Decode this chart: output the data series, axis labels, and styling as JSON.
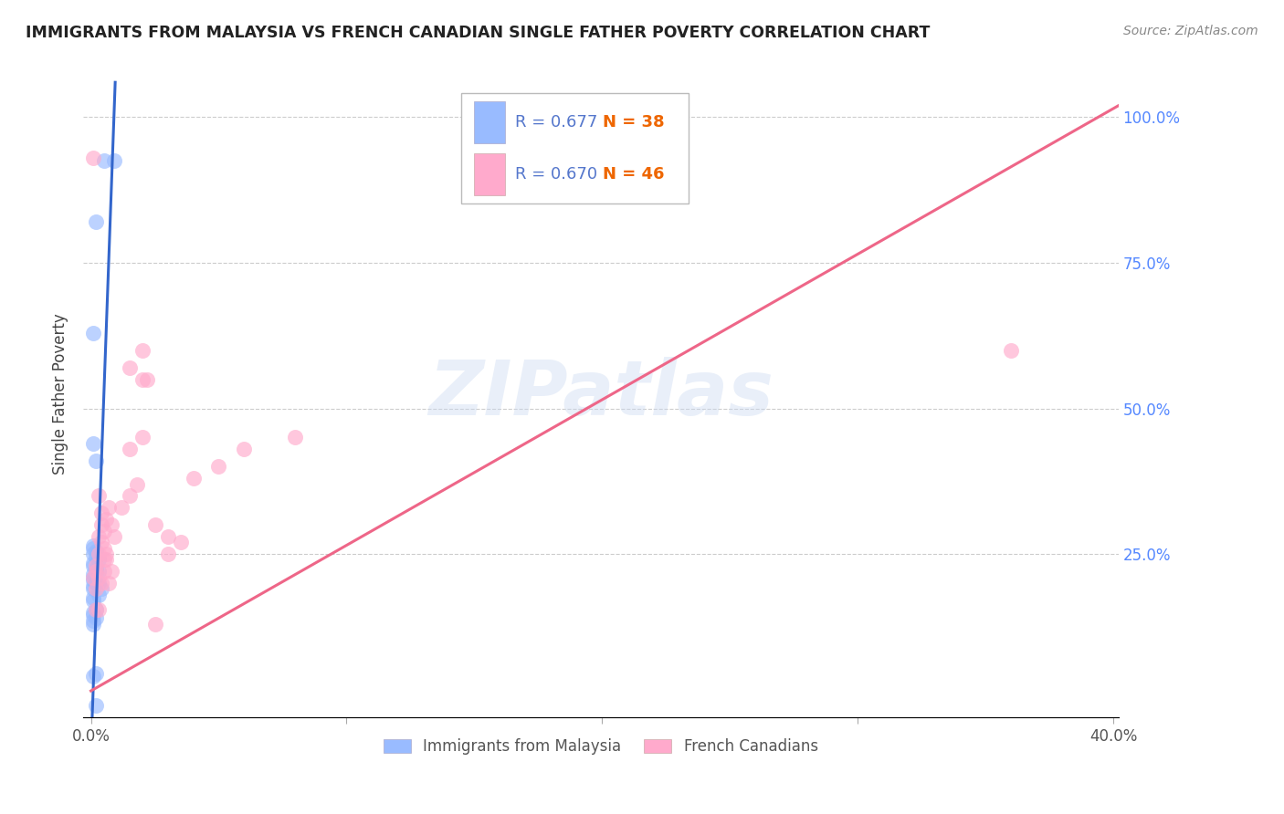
{
  "title": "IMMIGRANTS FROM MALAYSIA VS FRENCH CANADIAN SINGLE FATHER POVERTY CORRELATION CHART",
  "source": "Source: ZipAtlas.com",
  "ylabel": "Single Father Poverty",
  "watermark": "ZIPatlas",
  "legend": {
    "blue_R_label": "R = 0.677",
    "blue_N_label": "N = 38",
    "pink_R_label": "R = 0.670",
    "pink_N_label": "N = 46",
    "series1_label": "Immigrants from Malaysia",
    "series2_label": "French Canadians"
  },
  "blue_color": "#99bbff",
  "pink_color": "#ffaacc",
  "blue_line_color": "#3366cc",
  "pink_line_color": "#ee6688",
  "R_text_color": "#5577cc",
  "N_text_color": "#ee6600",
  "xlim": [
    -0.003,
    0.402
  ],
  "ylim": [
    -0.03,
    1.08
  ],
  "ytick_values": [
    0.25,
    0.5,
    0.75,
    1.0
  ],
  "ytick_labels": [
    "25.0%",
    "50.0%",
    "75.0%",
    "100.0%"
  ],
  "xtick_values": [
    0.0,
    0.1,
    0.2,
    0.3,
    0.4
  ],
  "xtick_labels": [
    "0.0%",
    "",
    "",
    "",
    "40.0%"
  ],
  "blue_points_x": [
    0.005,
    0.009,
    0.002,
    0.001,
    0.001,
    0.002,
    0.001,
    0.001,
    0.002,
    0.001,
    0.002,
    0.003,
    0.001,
    0.001,
    0.002,
    0.003,
    0.002,
    0.001,
    0.001,
    0.001,
    0.002,
    0.003,
    0.002,
    0.001,
    0.001,
    0.004,
    0.003,
    0.001,
    0.001,
    0.002,
    0.001,
    0.001,
    0.002,
    0.001,
    0.001,
    0.002,
    0.001,
    0.002
  ],
  "blue_points_y": [
    0.925,
    0.925,
    0.82,
    0.63,
    0.44,
    0.41,
    0.265,
    0.26,
    0.255,
    0.25,
    0.245,
    0.24,
    0.235,
    0.23,
    0.225,
    0.22,
    0.22,
    0.215,
    0.21,
    0.205,
    0.2,
    0.2,
    0.2,
    0.195,
    0.19,
    0.19,
    0.18,
    0.175,
    0.17,
    0.155,
    0.15,
    0.145,
    0.14,
    0.135,
    0.13,
    0.045,
    0.04,
    -0.01
  ],
  "pink_points_x": [
    0.001,
    0.002,
    0.003,
    0.005,
    0.006,
    0.007,
    0.008,
    0.002,
    0.003,
    0.004,
    0.005,
    0.006,
    0.003,
    0.004,
    0.005,
    0.004,
    0.003,
    0.002,
    0.001,
    0.002,
    0.003,
    0.004,
    0.005,
    0.006,
    0.007,
    0.008,
    0.009,
    0.012,
    0.015,
    0.018,
    0.02,
    0.022,
    0.025,
    0.015,
    0.02,
    0.025,
    0.03,
    0.015,
    0.02,
    0.03,
    0.035,
    0.04,
    0.05,
    0.06,
    0.08,
    0.36
  ],
  "pink_points_y": [
    0.93,
    0.155,
    0.155,
    0.24,
    0.25,
    0.2,
    0.22,
    0.19,
    0.21,
    0.2,
    0.22,
    0.24,
    0.28,
    0.3,
    0.26,
    0.32,
    0.35,
    0.22,
    0.21,
    0.23,
    0.25,
    0.27,
    0.29,
    0.31,
    0.33,
    0.3,
    0.28,
    0.33,
    0.35,
    0.37,
    0.55,
    0.55,
    0.13,
    0.57,
    0.6,
    0.3,
    0.28,
    0.43,
    0.45,
    0.25,
    0.27,
    0.38,
    0.4,
    0.43,
    0.45,
    0.6
  ],
  "blue_line_x": [
    0.0005,
    0.0095
  ],
  "blue_line_y": [
    -0.03,
    1.06
  ],
  "pink_line_x": [
    0.0,
    0.402
  ],
  "pink_line_y": [
    0.015,
    1.02
  ]
}
